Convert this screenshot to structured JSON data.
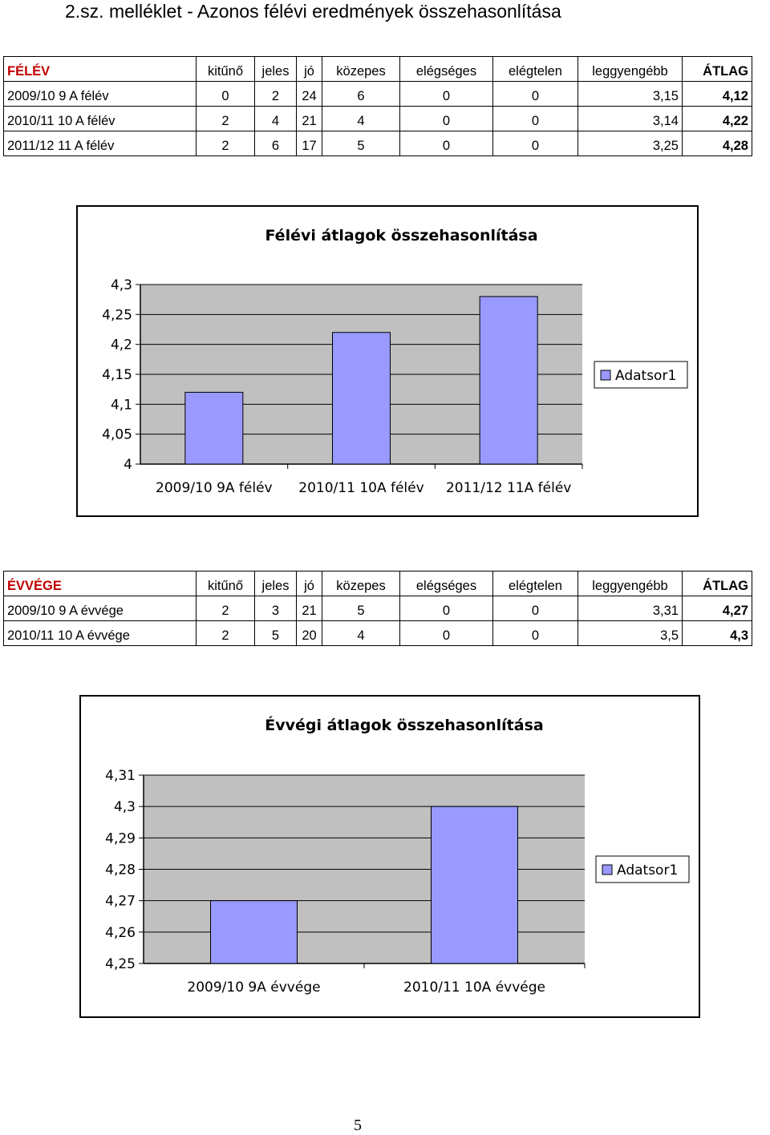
{
  "title": "2.sz.  melléklet - Azonos félévi eredmények összehasonlítása",
  "table1": {
    "header": [
      "FÉLÉV",
      "kitűnő",
      "jeles",
      "jó",
      "közepes",
      "elégséges",
      "elégtelen",
      "leggyengébb",
      "ÁTLAG"
    ],
    "rows": [
      [
        "2009/10 9 A félév",
        "0",
        "2",
        "24",
        "6",
        "0",
        "0",
        "3,15",
        "4,12"
      ],
      [
        "2010/11 10 A félév",
        "2",
        "4",
        "21",
        "4",
        "0",
        "0",
        "3,14",
        "4,22"
      ],
      [
        "2011/12 11 A félév",
        "2",
        "6",
        "17",
        "5",
        "0",
        "0",
        "3,25",
        "4,28"
      ]
    ]
  },
  "table2": {
    "header": [
      "ÉVVÉGE",
      "kitűnő",
      "jeles",
      "jó",
      "közepes",
      "elégséges",
      "elégtelen",
      "leggyengébb",
      "ÁTLAG"
    ],
    "rows": [
      [
        "2009/10 9 A évvége",
        "2",
        "3",
        "21",
        "5",
        "0",
        "0",
        "3,31",
        "4,27"
      ],
      [
        "2010/11 10 A évvége",
        "2",
        "5",
        "20",
        "4",
        "0",
        "0",
        "3,5",
        "4,3"
      ]
    ]
  },
  "chart_data": [
    {
      "type": "bar",
      "title": "Félévi átlagok összehasonlítása",
      "categories": [
        "2009/10 9A félév",
        "2010/11 10A félév",
        "2011/12 11A félév"
      ],
      "series": [
        {
          "name": "Adatsor1",
          "values": [
            4.12,
            4.22,
            4.28
          ]
        }
      ],
      "yticks": [
        "4,3",
        "4,25",
        "4,2",
        "4,15",
        "4,1",
        "4,05",
        "4"
      ],
      "ylim": [
        4,
        4.3
      ],
      "xlabel": "",
      "ylabel": "",
      "grid": true,
      "legend": "right",
      "colors": {
        "bar": "#9999ff",
        "plot_bg": "#c0c0c0"
      }
    },
    {
      "type": "bar",
      "title": "Évvégi átlagok összehasonlítása",
      "categories": [
        "2009/10 9A évvége",
        "2010/11 10A évvége"
      ],
      "series": [
        {
          "name": "Adatsor1",
          "values": [
            4.27,
            4.3
          ]
        }
      ],
      "yticks": [
        "4,31",
        "4,3",
        "4,29",
        "4,28",
        "4,27",
        "4,26",
        "4,25"
      ],
      "ylim": [
        4.25,
        4.31
      ],
      "xlabel": "",
      "ylabel": "",
      "grid": true,
      "legend": "right",
      "colors": {
        "bar": "#9999ff",
        "plot_bg": "#c0c0c0"
      }
    }
  ],
  "page_number": "5"
}
